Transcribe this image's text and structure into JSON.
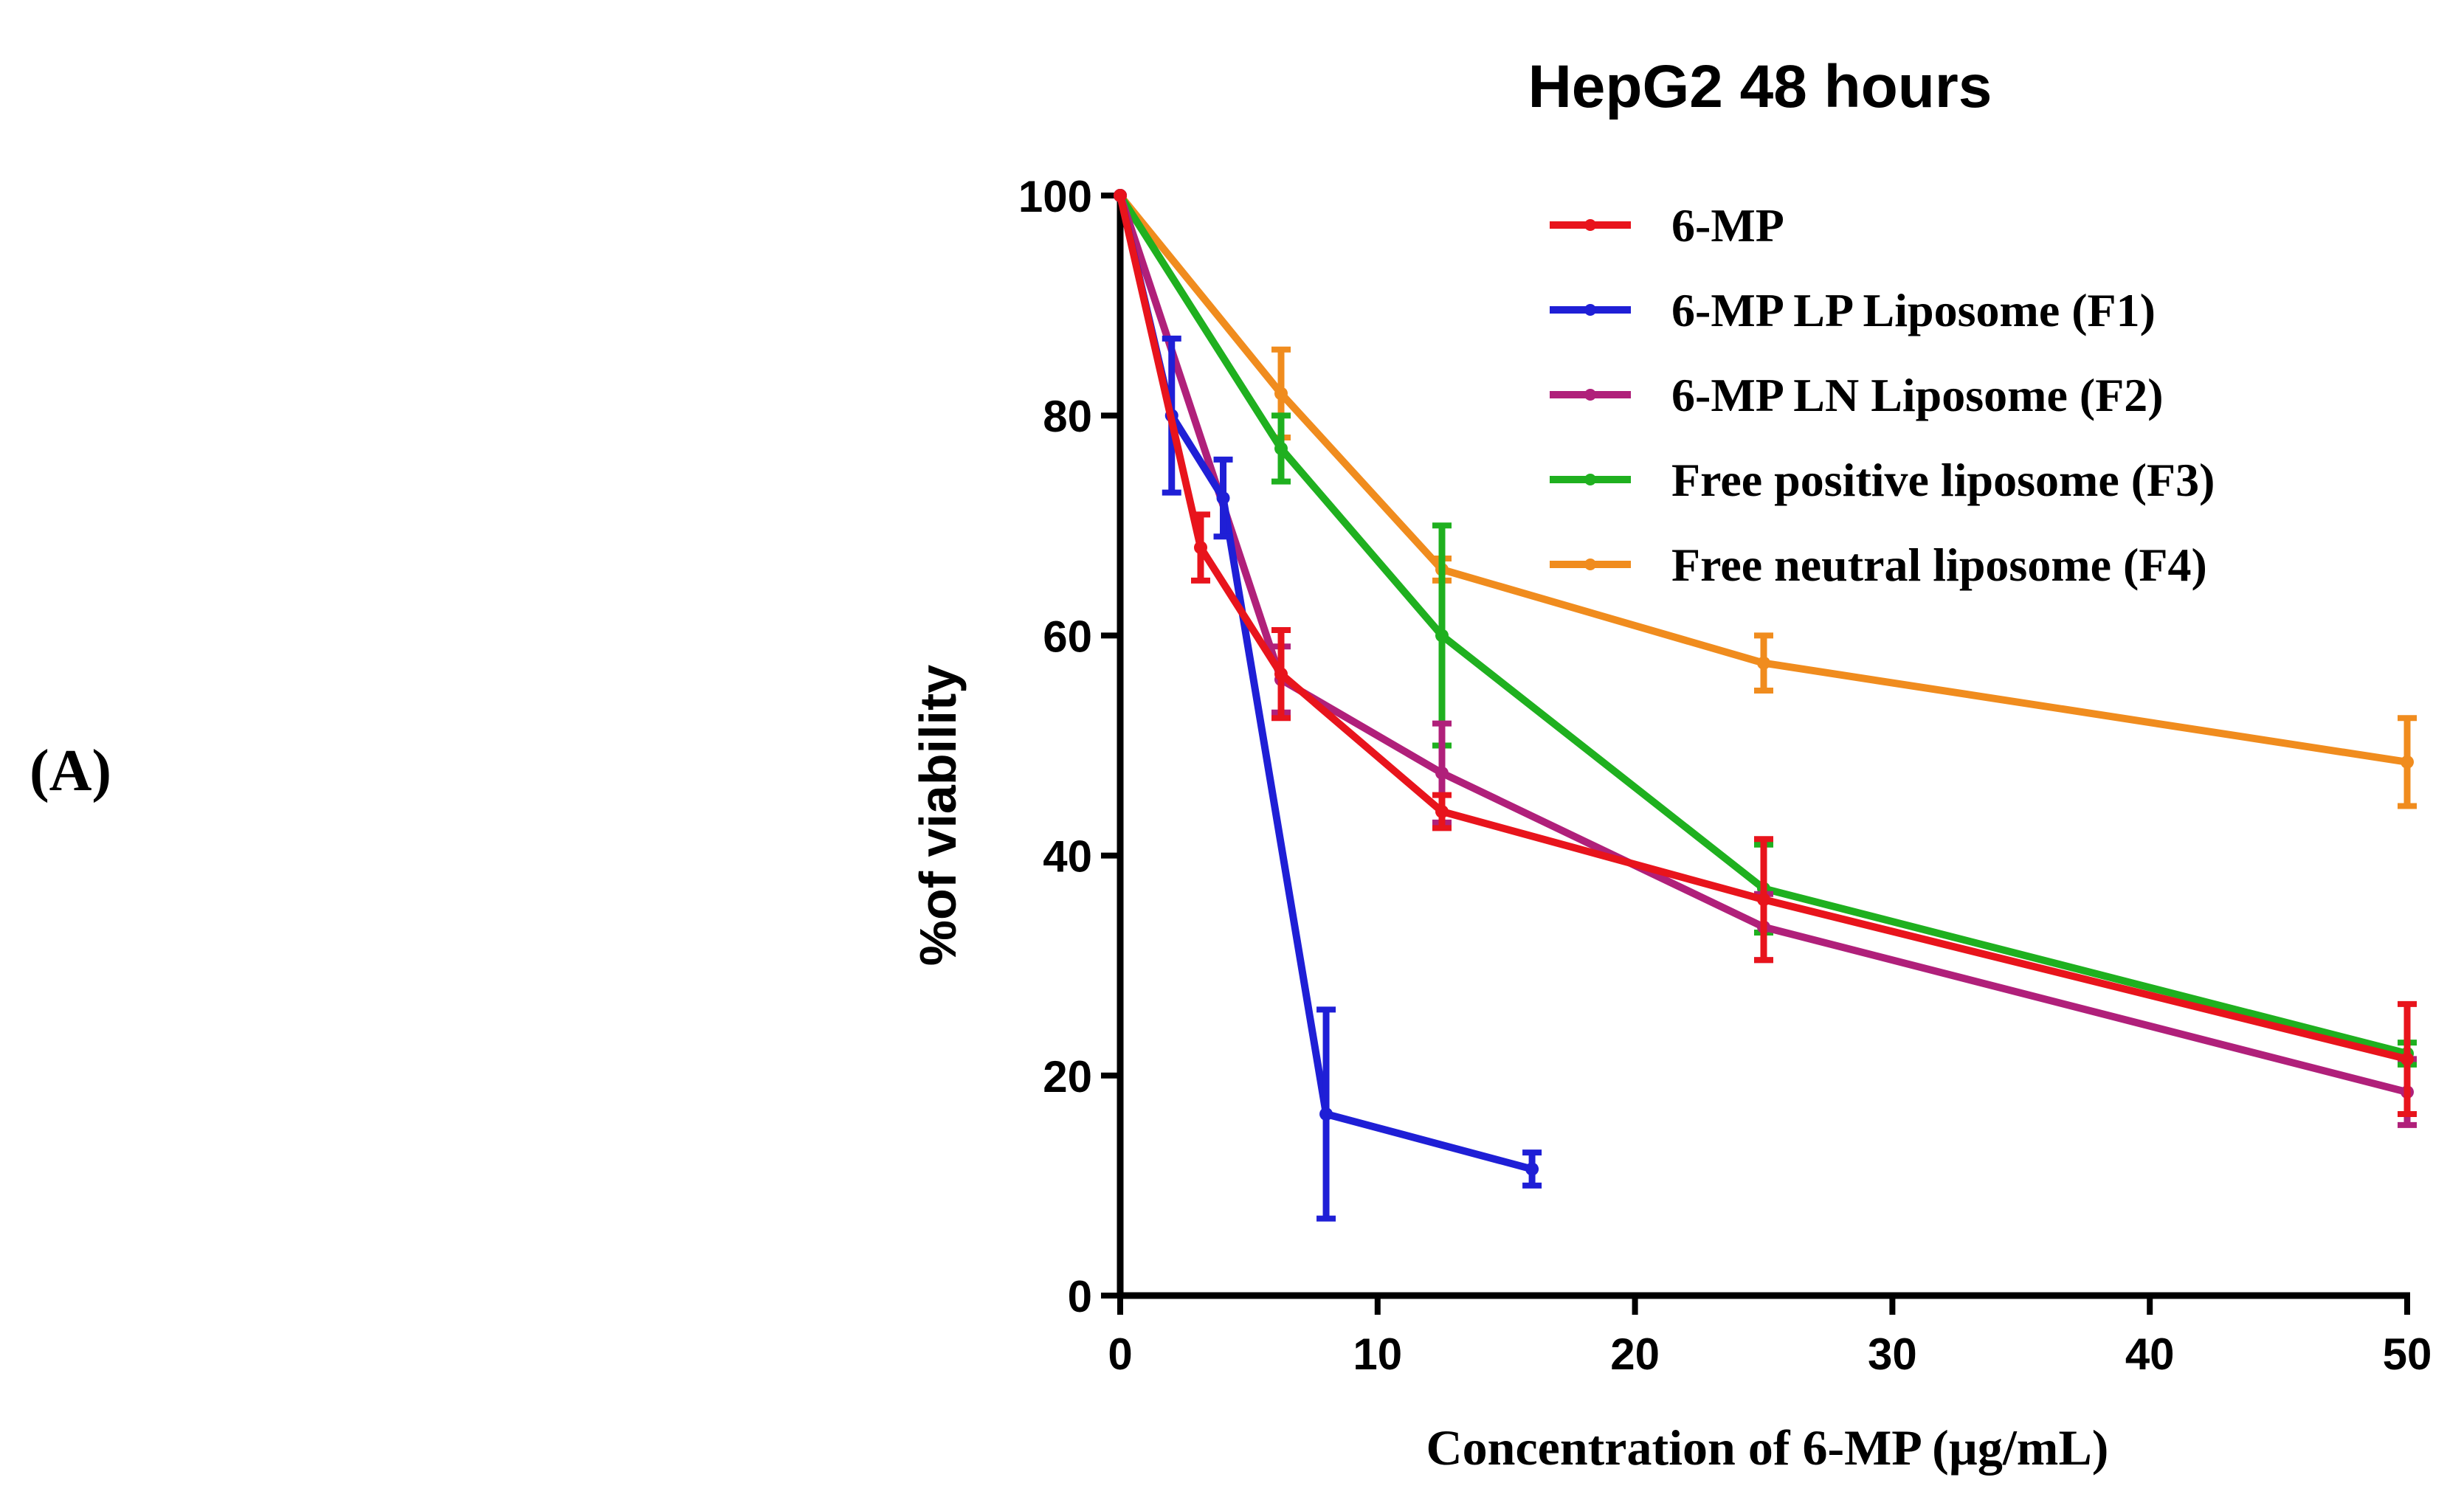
{
  "panel_label": "(A)",
  "chart_data": {
    "type": "line",
    "title": "HepG2 48 hours",
    "xlabel": "Concentration of 6-MP (µg/mL)",
    "ylabel": "%of viability",
    "xlim": [
      0,
      50
    ],
    "ylim": [
      0,
      100
    ],
    "xticks": [
      0,
      10,
      20,
      30,
      40,
      50
    ],
    "yticks": [
      0,
      20,
      40,
      60,
      80,
      100
    ],
    "legend_position": "top-right",
    "series": [
      {
        "name": "6-MP",
        "color": "#e8141c",
        "x": [
          0,
          3.125,
          6.25,
          12.5,
          25,
          50
        ],
        "y": [
          100,
          68,
          56.5,
          44,
          36,
          21.5
        ],
        "err": [
          0,
          3,
          4,
          1.5,
          5.5,
          5
        ]
      },
      {
        "name": "6-MP LP Liposome (F1)",
        "color": "#1f1fd6",
        "x": [
          0,
          2,
          4,
          8,
          16
        ],
        "y": [
          100,
          80,
          72.5,
          16.5,
          11.5
        ],
        "err": [
          0,
          7,
          3.5,
          9.5,
          1.5
        ]
      },
      {
        "name": "6-MP LN Liposome (F2)",
        "color": "#b0207a",
        "x": [
          0,
          6.25,
          12.5,
          25,
          50
        ],
        "y": [
          100,
          56,
          47.5,
          33.5,
          18.5
        ],
        "err": [
          0,
          3,
          4.5,
          3,
          3
        ]
      },
      {
        "name": "Free positive liposome (F3)",
        "color": "#1fb01f",
        "x": [
          0,
          6.25,
          12.5,
          25,
          50
        ],
        "y": [
          100,
          77,
          60,
          37,
          22
        ],
        "err": [
          0,
          3,
          10,
          4,
          1
        ]
      },
      {
        "name": "Free neutral liposome (F4)",
        "color": "#f08c1e",
        "x": [
          0,
          6.25,
          12.5,
          25,
          50
        ],
        "y": [
          100,
          82,
          66,
          57.5,
          48.5
        ],
        "err": [
          0,
          4,
          1,
          2.5,
          4
        ]
      }
    ]
  }
}
